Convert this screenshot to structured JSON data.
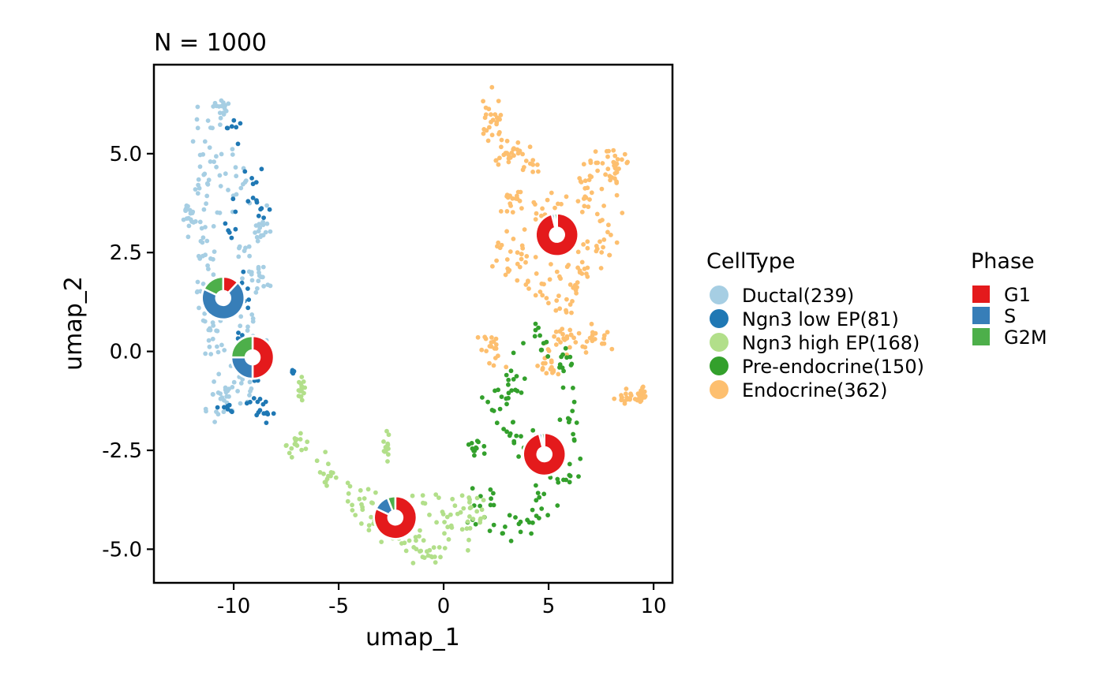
{
  "chart_data": {
    "type": "scatter",
    "title": "N = 1000",
    "xlabel": "umap_1",
    "ylabel": "umap_2",
    "xlim": [
      -13.8,
      10.9
    ],
    "ylim": [
      -5.85,
      7.25
    ],
    "x_ticks": [
      -10,
      -5,
      0,
      5,
      10
    ],
    "x_tick_labels": [
      "-10",
      "-5",
      "0",
      "5",
      "10"
    ],
    "y_ticks": [
      -5,
      -2.5,
      0,
      2.5,
      5
    ],
    "y_tick_labels": [
      "-5.0",
      "-2.5",
      "0.0",
      "2.5",
      "5.0"
    ],
    "grid": false,
    "legend_celltype": {
      "title": "CellType",
      "placement": "right",
      "items": [
        {
          "label": "Ductal(239)",
          "color": "#A6CEE3"
        },
        {
          "label": "Ngn3 low EP(81)",
          "color": "#1F78B4"
        },
        {
          "label": "Ngn3 high EP(168)",
          "color": "#B2DF8A"
        },
        {
          "label": "Pre-endocrine(150)",
          "color": "#33A02C"
        },
        {
          "label": "Endocrine(362)",
          "color": "#FDBF6F"
        }
      ]
    },
    "legend_phase": {
      "title": "Phase",
      "placement": "right",
      "items": [
        {
          "label": "G1",
          "color": "#E41A1C"
        },
        {
          "label": "S",
          "color": "#377EB8"
        },
        {
          "label": "G2M",
          "color": "#4DAF4A"
        }
      ]
    },
    "clusters": [
      {
        "name": "Ductal",
        "color": "#A6CEE3",
        "count": 239,
        "shape": [
          [
            -10.6,
            6.2,
            0.35,
            0.2
          ],
          [
            -11.1,
            5.3,
            0.6,
            0.5
          ],
          [
            -11.4,
            4.2,
            0.6,
            0.5
          ],
          [
            -11.6,
            3.2,
            0.5,
            0.45
          ],
          [
            -11.4,
            2.2,
            0.5,
            0.45
          ],
          [
            -10.9,
            1.2,
            0.6,
            0.4
          ],
          [
            -10.9,
            0.2,
            0.6,
            0.4
          ],
          [
            -10.6,
            -0.8,
            0.55,
            0.45
          ],
          [
            -10.4,
            -1.4,
            0.5,
            0.25
          ],
          [
            -9.9,
            4.6,
            0.5,
            0.6
          ],
          [
            -9.7,
            2.5,
            0.55,
            0.6
          ],
          [
            -8.6,
            3.0,
            0.25,
            0.45
          ],
          [
            -8.8,
            1.8,
            0.35,
            0.3
          ],
          [
            -9.3,
            0.5,
            0.4,
            0.35
          ],
          [
            -9.6,
            -0.7,
            0.4,
            0.3
          ],
          [
            -12.1,
            3.5,
            0.25,
            0.2
          ]
        ]
      },
      {
        "name": "Ngn3 low EP",
        "color": "#1F78B4",
        "count": 81,
        "shape": [
          [
            -9.2,
            -1.3,
            0.55,
            0.3
          ],
          [
            -8.5,
            -1.6,
            0.35,
            0.2
          ],
          [
            -9.1,
            -0.6,
            0.35,
            0.35
          ],
          [
            -9.7,
            0.2,
            0.25,
            0.3
          ],
          [
            -10.1,
            -1.5,
            0.3,
            0.15
          ],
          [
            -8.7,
            3.6,
            0.3,
            0.3
          ],
          [
            -9.1,
            4.2,
            0.4,
            0.3
          ],
          [
            -9.8,
            5.6,
            0.3,
            0.3
          ],
          [
            -9.4,
            1.4,
            0.3,
            0.4
          ],
          [
            -10.2,
            3.2,
            0.3,
            0.3
          ],
          [
            -7.2,
            -0.5,
            0.05,
            0.05
          ]
        ]
      },
      {
        "name": "Ngn3 high EP",
        "color": "#B2DF8A",
        "count": 168,
        "shape": [
          [
            -6.8,
            -1.0,
            0.12,
            0.25
          ],
          [
            -6.9,
            -2.4,
            0.5,
            0.22
          ],
          [
            -5.4,
            -3.1,
            0.55,
            0.35
          ],
          [
            -4.2,
            -3.8,
            0.6,
            0.3
          ],
          [
            -3.0,
            -4.3,
            0.6,
            0.3
          ],
          [
            -1.8,
            -4.8,
            0.6,
            0.3
          ],
          [
            -0.6,
            -5.1,
            0.6,
            0.2
          ],
          [
            -0.3,
            -4.1,
            0.7,
            0.35
          ],
          [
            0.7,
            -4.3,
            0.6,
            0.4
          ],
          [
            1.5,
            -3.9,
            0.4,
            0.3
          ],
          [
            -2.7,
            -2.4,
            0.12,
            0.25
          ]
        ]
      },
      {
        "name": "Pre-endocrine",
        "color": "#33A02C",
        "count": 150,
        "shape": [
          [
            1.8,
            -3.9,
            0.5,
            0.3
          ],
          [
            3.3,
            -4.3,
            0.5,
            0.35
          ],
          [
            4.3,
            -3.8,
            0.55,
            0.4
          ],
          [
            5.4,
            -3.0,
            0.45,
            0.35
          ],
          [
            6.0,
            -1.8,
            0.35,
            0.5
          ],
          [
            5.8,
            -0.3,
            0.45,
            0.45
          ],
          [
            4.5,
            0.2,
            0.5,
            0.3
          ],
          [
            3.5,
            -0.7,
            0.45,
            0.35
          ],
          [
            1.6,
            -2.5,
            0.4,
            0.2
          ],
          [
            3.1,
            -2.1,
            0.4,
            0.3
          ],
          [
            4.5,
            -2.4,
            0.5,
            0.4
          ],
          [
            2.5,
            -1.3,
            0.4,
            0.2
          ]
        ]
      },
      {
        "name": "Endocrine",
        "color": "#FDBF6F",
        "count": 362,
        "shape": [
          [
            2.3,
            6.0,
            0.35,
            0.5
          ],
          [
            2.7,
            5.0,
            0.45,
            0.4
          ],
          [
            3.9,
            4.9,
            0.6,
            0.3
          ],
          [
            3.4,
            3.8,
            0.6,
            0.5
          ],
          [
            4.9,
            3.5,
            0.7,
            0.5
          ],
          [
            3.0,
            2.5,
            0.6,
            0.4
          ],
          [
            4.5,
            1.8,
            0.8,
            0.5
          ],
          [
            5.9,
            1.3,
            0.7,
            0.5
          ],
          [
            6.6,
            2.3,
            0.6,
            0.5
          ],
          [
            7.7,
            3.0,
            0.5,
            0.6
          ],
          [
            7.6,
            4.6,
            0.6,
            0.5
          ],
          [
            6.6,
            4.1,
            0.5,
            0.4
          ],
          [
            8.3,
            4.7,
            0.35,
            0.4
          ],
          [
            7.0,
            0.4,
            0.6,
            0.3
          ],
          [
            5.8,
            0.3,
            0.4,
            0.3
          ],
          [
            2.3,
            0.0,
            0.35,
            0.4
          ],
          [
            8.8,
            -1.2,
            0.5,
            0.15
          ],
          [
            9.4,
            -1.1,
            0.15,
            0.1
          ],
          [
            5.0,
            -0.4,
            0.4,
            0.3
          ]
        ]
      }
    ],
    "pies": [
      {
        "celltype": "Ductal",
        "x": -10.5,
        "y": 1.35,
        "G1": 0.12,
        "S": 0.7,
        "G2M": 0.18
      },
      {
        "celltype": "Ngn3 low EP",
        "x": -9.1,
        "y": -0.15,
        "G1": 0.5,
        "S": 0.25,
        "G2M": 0.25
      },
      {
        "celltype": "Ngn3 high EP",
        "x": -2.3,
        "y": -4.2,
        "G1": 0.82,
        "S": 0.12,
        "G2M": 0.06
      },
      {
        "celltype": "Pre-endocrine",
        "x": 4.8,
        "y": -2.6,
        "G1": 0.96,
        "S": 0.02,
        "G2M": 0.02
      },
      {
        "celltype": "Endocrine",
        "x": 5.4,
        "y": 2.95,
        "G1": 0.96,
        "S": 0.02,
        "G2M": 0.02
      }
    ]
  }
}
